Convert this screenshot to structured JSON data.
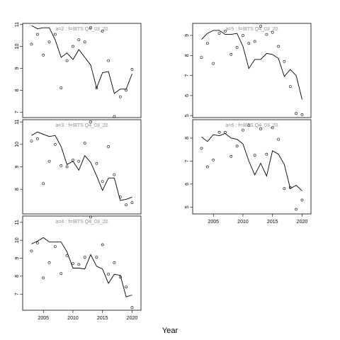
{
  "xlabel": "Year",
  "chart_data": [
    {
      "type": "scatter",
      "title": "a=2  :  f=IBTS Q4_03_20",
      "xlim": [
        2001.5,
        2021.5
      ],
      "ylim": [
        6.75,
        11.05
      ],
      "yticks": [
        7,
        8,
        9,
        10,
        11
      ],
      "xticks": [
        2005,
        2010,
        2015,
        2020
      ],
      "show_xticks": false,
      "points": [
        [
          2003,
          10.1
        ],
        [
          2004,
          10.55
        ],
        [
          2005,
          9.6
        ],
        [
          2006,
          10.2
        ],
        [
          2007,
          10.55
        ],
        [
          2008,
          8.1
        ],
        [
          2009,
          9.35
        ],
        [
          2010,
          10
        ],
        [
          2011,
          10.3
        ],
        [
          2012,
          10.2
        ],
        [
          2013,
          10.85
        ],
        [
          2014,
          8.1
        ],
        [
          2015,
          10.7
        ],
        [
          2016,
          9.35
        ],
        [
          2017,
          6.8
        ],
        [
          2018,
          7.7
        ],
        [
          2019,
          8.0
        ],
        [
          2020,
          8.95
        ]
      ],
      "fit": [
        [
          2003,
          10.95
        ],
        [
          2004,
          10.8
        ],
        [
          2005,
          10.85
        ],
        [
          2006,
          10.85
        ],
        [
          2007,
          10.3
        ],
        [
          2008,
          9.5
        ],
        [
          2009,
          9.7
        ],
        [
          2010,
          9.4
        ],
        [
          2011,
          9.85
        ],
        [
          2012,
          9.5
        ],
        [
          2013,
          9.15
        ],
        [
          2014,
          8.1
        ],
        [
          2015,
          8.8
        ],
        [
          2016,
          8.85
        ],
        [
          2017,
          7.85
        ],
        [
          2018,
          8.05
        ],
        [
          2019,
          8.05
        ],
        [
          2020,
          8.75
        ]
      ]
    },
    {
      "type": "scatter",
      "title": "a=3  :  f=IBTS Q4_03_20",
      "xlim": [
        2001.5,
        2021.5
      ],
      "ylim": [
        6.9,
        11.1
      ],
      "yticks": [
        8,
        9,
        10,
        11
      ],
      "xticks": [
        2005,
        2010,
        2015,
        2020
      ],
      "show_xticks": false,
      "points": [
        [
          2003,
          10.15
        ],
        [
          2004,
          10.25
        ],
        [
          2005,
          8.25
        ],
        [
          2006,
          9.25
        ],
        [
          2007,
          10
        ],
        [
          2008,
          9.05
        ],
        [
          2009,
          9
        ],
        [
          2010,
          9.3
        ],
        [
          2011,
          9.25
        ],
        [
          2012,
          10.05
        ],
        [
          2013,
          11
        ],
        [
          2014,
          9.15
        ],
        [
          2015,
          8.35
        ],
        [
          2016,
          9.9
        ],
        [
          2017,
          8.65
        ],
        [
          2018,
          7.65
        ],
        [
          2019,
          7.3
        ],
        [
          2020,
          7.4
        ]
      ],
      "fit": [
        [
          2003,
          10.4
        ],
        [
          2004,
          10.55
        ],
        [
          2005,
          10.45
        ],
        [
          2006,
          10.35
        ],
        [
          2007,
          10.4
        ],
        [
          2008,
          9.9
        ],
        [
          2009,
          9.1
        ],
        [
          2010,
          9.25
        ],
        [
          2011,
          8.85
        ],
        [
          2012,
          9.5
        ],
        [
          2013,
          9.2
        ],
        [
          2014,
          8.6
        ],
        [
          2015,
          7.95
        ],
        [
          2016,
          8.5
        ],
        [
          2017,
          8.5
        ],
        [
          2018,
          7.5
        ],
        [
          2019,
          7.55
        ],
        [
          2020,
          7.65
        ]
      ]
    },
    {
      "type": "scatter",
      "title": "a=4  :  f=IBTS Q4_03_20",
      "xlim": [
        2001.5,
        2021.5
      ],
      "ylim": [
        6.1,
        11.35
      ],
      "yticks": [
        7,
        8,
        9,
        10,
        11
      ],
      "xticks": [
        2005,
        2010,
        2015,
        2020
      ],
      "show_xticks": true,
      "points": [
        [
          2003,
          9.4
        ],
        [
          2004,
          9.85
        ],
        [
          2005,
          7.9
        ],
        [
          2006,
          8.75
        ],
        [
          2007,
          9.65
        ],
        [
          2008,
          8.15
        ],
        [
          2009,
          9.15
        ],
        [
          2010,
          8.7
        ],
        [
          2011,
          8.65
        ],
        [
          2012,
          9.05
        ],
        [
          2013,
          11.3
        ],
        [
          2014,
          9.05
        ],
        [
          2015,
          9.75
        ],
        [
          2016,
          8.1
        ],
        [
          2017,
          8.75
        ],
        [
          2018,
          7.95
        ],
        [
          2019,
          7.4
        ],
        [
          2020,
          6.25
        ]
      ],
      "fit": [
        [
          2003,
          9.8
        ],
        [
          2004,
          9.95
        ],
        [
          2005,
          10.15
        ],
        [
          2006,
          9.9
        ],
        [
          2007,
          9.9
        ],
        [
          2008,
          9.9
        ],
        [
          2009,
          9.35
        ],
        [
          2010,
          8.45
        ],
        [
          2011,
          8.45
        ],
        [
          2012,
          8.4
        ],
        [
          2013,
          9.2
        ],
        [
          2014,
          8.55
        ],
        [
          2015,
          8.4
        ],
        [
          2016,
          7.6
        ],
        [
          2017,
          8.1
        ],
        [
          2018,
          8.05
        ],
        [
          2019,
          6.85
        ],
        [
          2020,
          6.95
        ]
      ]
    },
    {
      "type": "scatter",
      "title": "a=5  :  f=IBTS Q4_03_20",
      "xlim": [
        2001.5,
        2021.5
      ],
      "ylim": [
        4.9,
        9.6
      ],
      "yticks": [
        5,
        6,
        7,
        8,
        9
      ],
      "xticks": [
        2005,
        2010,
        2015,
        2020
      ],
      "show_xticks": false,
      "points": [
        [
          2003,
          7.9
        ],
        [
          2004,
          8.6
        ],
        [
          2005,
          7.6
        ],
        [
          2006,
          9.1
        ],
        [
          2007,
          9.2
        ],
        [
          2008,
          8.05
        ],
        [
          2009,
          8.4
        ],
        [
          2010,
          9
        ],
        [
          2011,
          8.6
        ],
        [
          2012,
          8.7
        ],
        [
          2013,
          9.45
        ],
        [
          2014,
          9.05
        ],
        [
          2015,
          9.15
        ],
        [
          2016,
          8.45
        ],
        [
          2017,
          7.7
        ],
        [
          2018,
          6.45
        ],
        [
          2019,
          5.1
        ],
        [
          2020,
          5.05
        ]
      ],
      "fit": [
        [
          2003,
          8.8
        ],
        [
          2004,
          9.1
        ],
        [
          2005,
          9.25
        ],
        [
          2006,
          9.25
        ],
        [
          2007,
          9.05
        ],
        [
          2008,
          9.05
        ],
        [
          2009,
          9.1
        ],
        [
          2010,
          8.45
        ],
        [
          2011,
          7.35
        ],
        [
          2012,
          7.8
        ],
        [
          2013,
          7.8
        ],
        [
          2014,
          8.1
        ],
        [
          2015,
          8.05
        ],
        [
          2016,
          7.85
        ],
        [
          2017,
          6.95
        ],
        [
          2018,
          7.3
        ],
        [
          2019,
          7.0
        ],
        [
          2020,
          5.8
        ]
      ]
    },
    {
      "type": "scatter",
      "title": "a=6  :  f=IBTS Q4_03_20",
      "xlim": [
        2001.5,
        2021.5
      ],
      "ylim": [
        4.7,
        8.8
      ],
      "yticks": [
        5,
        6,
        7,
        8
      ],
      "xticks": [
        2005,
        2010,
        2015,
        2020
      ],
      "show_xticks": true,
      "points": [
        [
          2003,
          7.55
        ],
        [
          2004,
          6.75
        ],
        [
          2005,
          7.05
        ],
        [
          2006,
          8.25
        ],
        [
          2007,
          8.25
        ],
        [
          2008,
          7.2
        ],
        [
          2009,
          7.65
        ],
        [
          2010,
          8.35
        ],
        [
          2011,
          8.55
        ],
        [
          2012,
          7.25
        ],
        [
          2013,
          8.4
        ],
        [
          2014,
          7.3
        ],
        [
          2015,
          8.45
        ],
        [
          2016,
          7.95
        ],
        [
          2017,
          5.8
        ],
        [
          2018,
          5.85
        ],
        [
          2019,
          4.9
        ],
        [
          2020,
          5.3
        ]
      ],
      "fit": [
        [
          2003,
          8.05
        ],
        [
          2004,
          7.85
        ],
        [
          2005,
          8.15
        ],
        [
          2006,
          8.1
        ],
        [
          2007,
          8.2
        ],
        [
          2008,
          8.0
        ],
        [
          2009,
          7.95
        ],
        [
          2010,
          7.75
        ],
        [
          2011,
          7.0
        ],
        [
          2012,
          6.4
        ],
        [
          2013,
          6.9
        ],
        [
          2014,
          6.35
        ],
        [
          2015,
          7.45
        ],
        [
          2016,
          7.3
        ],
        [
          2017,
          6.85
        ],
        [
          2018,
          5.8
        ],
        [
          2019,
          5.95
        ],
        [
          2020,
          5.7
        ]
      ]
    }
  ]
}
